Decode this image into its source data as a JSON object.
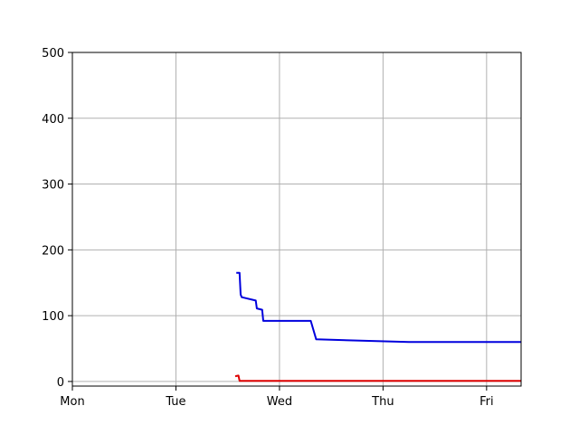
{
  "chart_data": {
    "type": "line",
    "title": "",
    "xlabel": "",
    "ylabel": "",
    "x_ticks": [
      "Mon",
      "Tue",
      "Wed",
      "Thu",
      "Fri"
    ],
    "y_ticks": [
      "0",
      "100",
      "200",
      "300",
      "400",
      "500"
    ],
    "xlim": [
      "Mon 00:00",
      "Fri 08:00"
    ],
    "ylim": [
      -7,
      500
    ],
    "grid": true,
    "colors": {
      "blue": "#0000dd",
      "red": "#dd0000",
      "grid": "#b0b0b0"
    },
    "series": [
      {
        "color": "#0000dd",
        "points": [
          [
            "Tue 14:00",
            165
          ],
          [
            "Tue 14:45",
            165
          ],
          [
            "Tue 15:00",
            132
          ],
          [
            "Tue 15:15",
            128
          ],
          [
            "Tue 18:30",
            123
          ],
          [
            "Tue 18:45",
            111
          ],
          [
            "Tue 20:00",
            109
          ],
          [
            "Tue 20:15",
            92
          ],
          [
            "Wed 07:15",
            92
          ],
          [
            "Wed 08:30",
            64
          ],
          [
            "Thu 06:00",
            60
          ],
          [
            "Fri 08:00",
            60
          ]
        ]
      },
      {
        "color": "#dd0000",
        "points": [
          [
            "Tue 13:45",
            8
          ],
          [
            "Tue 14:30",
            9
          ],
          [
            "Tue 14:45",
            1
          ],
          [
            "Fri 08:00",
            1
          ]
        ]
      }
    ]
  }
}
